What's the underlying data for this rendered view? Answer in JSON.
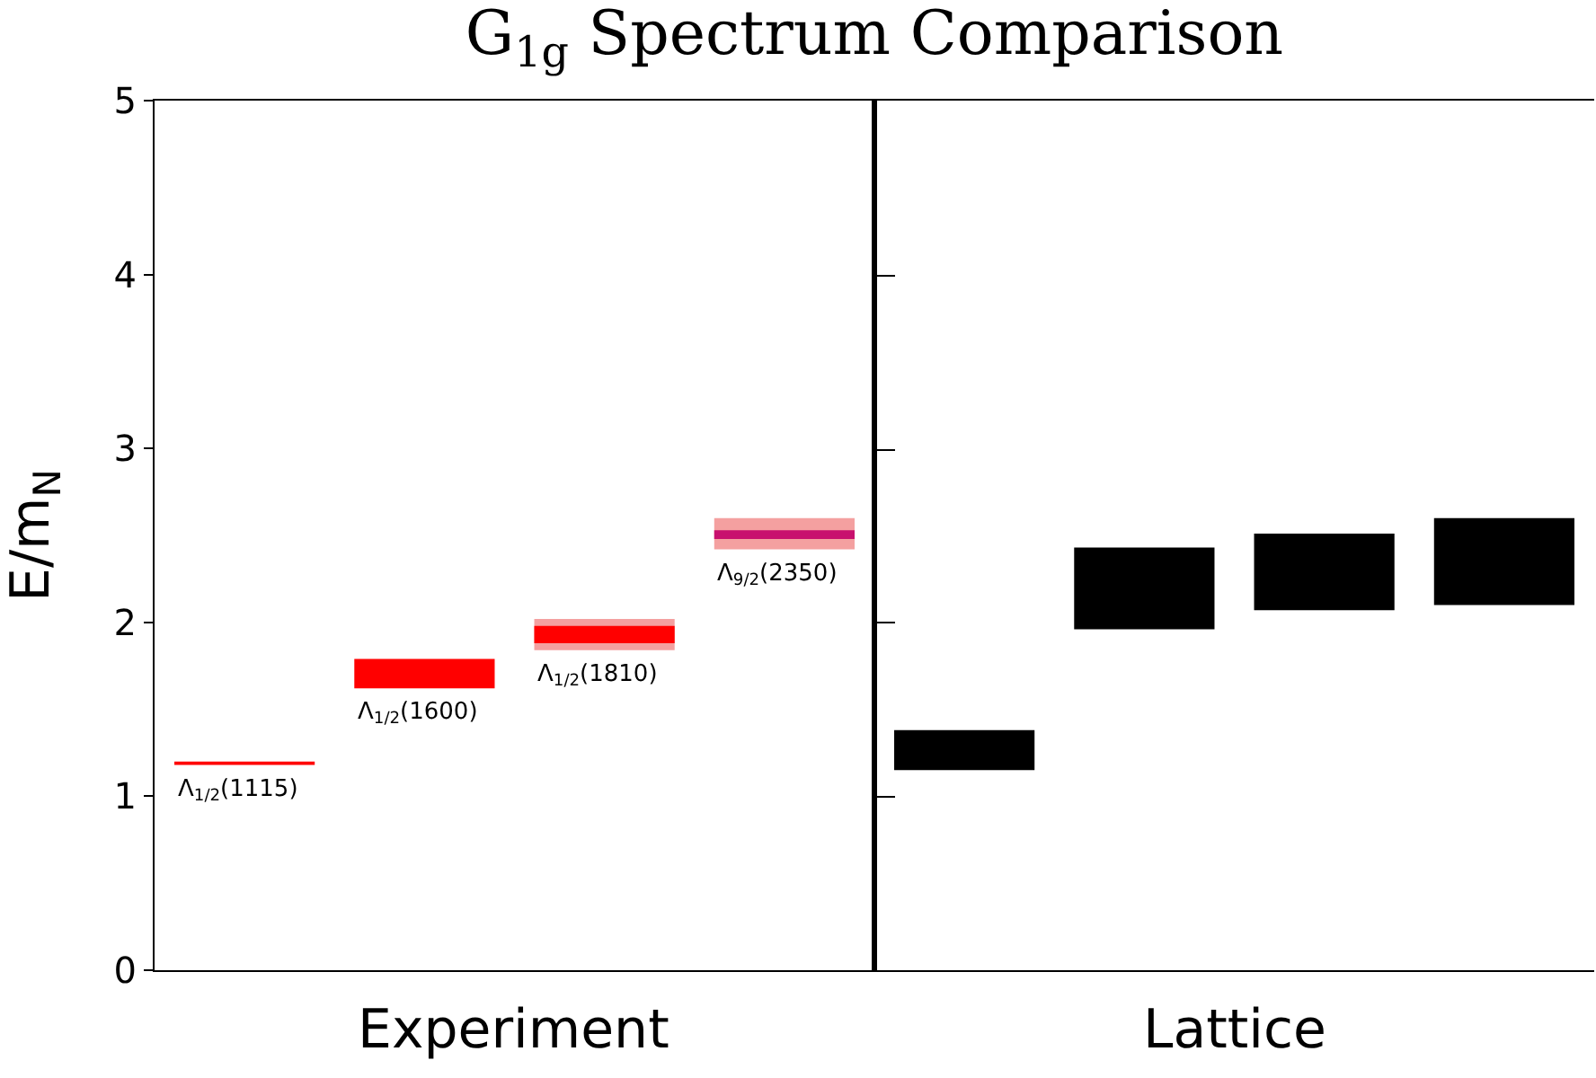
{
  "chart_data": {
    "type": "bar",
    "title": "G$_{1g}$ Spectrum Comparison",
    "ylabel": "E/m$_{N}$",
    "categories": [
      null,
      null,
      null,
      null,
      null,
      null,
      null,
      null
    ],
    "ylim": [
      0,
      5
    ],
    "yticks": [
      0,
      1,
      2,
      3,
      4,
      5
    ],
    "tick_labels": "y",
    "series": [
      {
        "color": "#f4a0a0",
        "base": [
          null,
          null,
          1.84,
          2.42,
          null,
          null,
          null,
          null
        ],
        "values": [
          null,
          null,
          0.18,
          0.18,
          null,
          null,
          null,
          null
        ]
      },
      {
        "colors": [
          "#ff0000",
          "#ff0000",
          "#ff0000",
          "#c8106e",
          null,
          null,
          null,
          null
        ],
        "base": [
          1.18,
          1.62,
          1.88,
          2.48,
          null,
          null,
          null,
          null
        ],
        "values": [
          0.02,
          0.17,
          0.1,
          0.05,
          null,
          null,
          null,
          null
        ]
      },
      {
        "color": "#000000",
        "base": [
          null,
          null,
          null,
          null,
          1.15,
          1.96,
          2.07,
          2.1
        ],
        "values": [
          null,
          null,
          null,
          null,
          0.23,
          0.47,
          0.44,
          0.5
        ]
      }
    ],
    "annotations": [
      {
        "text": "Λ$_{1/2}$(1115)",
        "y": 1.18
      },
      {
        "text": "Λ$_{1/2}$(1600)",
        "y": 1.62
      },
      {
        "text": "Λ$_{1/2}$(1810)",
        "y": 1.84
      },
      {
        "text": "Λ$_{9/2}$(2350)",
        "y": 2.42
      },
      "Experiment",
      "Lattice"
    ]
  }
}
